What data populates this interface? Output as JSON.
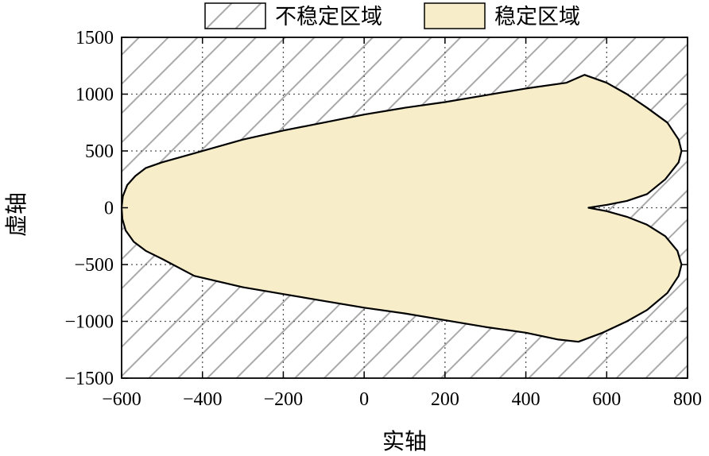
{
  "chart_data": {
    "type": "area",
    "xlabel": "实轴",
    "ylabel": "虚轴",
    "xlim": [
      -600,
      800
    ],
    "ylim": [
      -1500,
      1500
    ],
    "x_ticks": [
      -600,
      -400,
      -200,
      0,
      200,
      400,
      600,
      800
    ],
    "y_ticks": [
      -1500,
      -1000,
      -500,
      0,
      500,
      1000,
      1500
    ],
    "x_tick_labels": [
      "−600",
      "−400",
      "−200",
      "0",
      "200",
      "400",
      "600",
      "800"
    ],
    "y_tick_labels": [
      "−1500",
      "−1000",
      "−500",
      "0",
      "500",
      "1000",
      "1500"
    ],
    "grid": true,
    "legend": {
      "placement": "top",
      "entries": [
        {
          "label": "不稳定区域",
          "style": "hatched",
          "color": "#aaaaaa"
        },
        {
          "label": "稳定区域",
          "style": "solid",
          "color": "#f7edc8"
        }
      ]
    },
    "series": [
      {
        "name": "稳定区域",
        "fill": "#f7edc8",
        "stroke": "#000000",
        "boundary": [
          [
            -600,
            0
          ],
          [
            -597,
            100
          ],
          [
            -586,
            200
          ],
          [
            -566,
            280
          ],
          [
            -540,
            350
          ],
          [
            -500,
            400
          ],
          [
            -420,
            480
          ],
          [
            -300,
            600
          ],
          [
            -200,
            680
          ],
          [
            -100,
            750
          ],
          [
            0,
            820
          ],
          [
            100,
            880
          ],
          [
            200,
            930
          ],
          [
            300,
            990
          ],
          [
            400,
            1050
          ],
          [
            500,
            1100
          ],
          [
            545,
            1170
          ],
          [
            600,
            1100
          ],
          [
            650,
            1000
          ],
          [
            700,
            880
          ],
          [
            750,
            750
          ],
          [
            778,
            600
          ],
          [
            785,
            500
          ],
          [
            778,
            400
          ],
          [
            745,
            250
          ],
          [
            700,
            120
          ],
          [
            650,
            60
          ],
          [
            600,
            25
          ],
          [
            555,
            0
          ],
          [
            600,
            -30
          ],
          [
            650,
            -80
          ],
          [
            700,
            -150
          ],
          [
            745,
            -250
          ],
          [
            775,
            -380
          ],
          [
            785,
            -500
          ],
          [
            778,
            -600
          ],
          [
            750,
            -750
          ],
          [
            700,
            -900
          ],
          [
            650,
            -1000
          ],
          [
            590,
            -1100
          ],
          [
            530,
            -1180
          ],
          [
            480,
            -1160
          ],
          [
            400,
            -1100
          ],
          [
            300,
            -1050
          ],
          [
            200,
            -990
          ],
          [
            100,
            -930
          ],
          [
            0,
            -880
          ],
          [
            -100,
            -820
          ],
          [
            -200,
            -760
          ],
          [
            -300,
            -700
          ],
          [
            -420,
            -600
          ],
          [
            -500,
            -450
          ],
          [
            -540,
            -380
          ],
          [
            -570,
            -300
          ],
          [
            -590,
            -200
          ],
          [
            -598,
            -100
          ],
          [
            -600,
            0
          ]
        ]
      }
    ],
    "background_region": "不稳定区域"
  }
}
